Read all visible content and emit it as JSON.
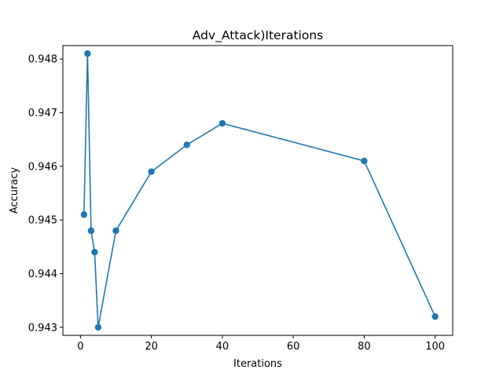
{
  "chart_data": {
    "type": "line",
    "title": "Adv_Attack)Iterations",
    "xlabel": "Iterations",
    "ylabel": "Accuracy",
    "x": [
      1,
      2,
      3,
      4,
      5,
      10,
      20,
      30,
      40,
      80,
      100
    ],
    "series": [
      {
        "values": [
          0.9451,
          0.9481,
          0.9448,
          0.9444,
          0.943,
          0.9448,
          0.9459,
          0.9464,
          0.9468,
          0.9461,
          0.9432
        ],
        "color": "#1f77b4",
        "marker": "circle"
      }
    ],
    "xlim": [
      -4.95,
      104.95
    ],
    "ylim": [
      0.94285,
      0.94825
    ],
    "xticks": [
      0,
      20,
      40,
      60,
      80,
      100
    ],
    "xtick_labels": [
      "0",
      "20",
      "40",
      "60",
      "80",
      "100"
    ],
    "yticks": [
      0.943,
      0.944,
      0.945,
      0.946,
      0.947,
      0.948
    ],
    "ytick_labels": [
      "0.943",
      "0.944",
      "0.945",
      "0.946",
      "0.947",
      "0.948"
    ],
    "grid": false,
    "legend": "none"
  }
}
